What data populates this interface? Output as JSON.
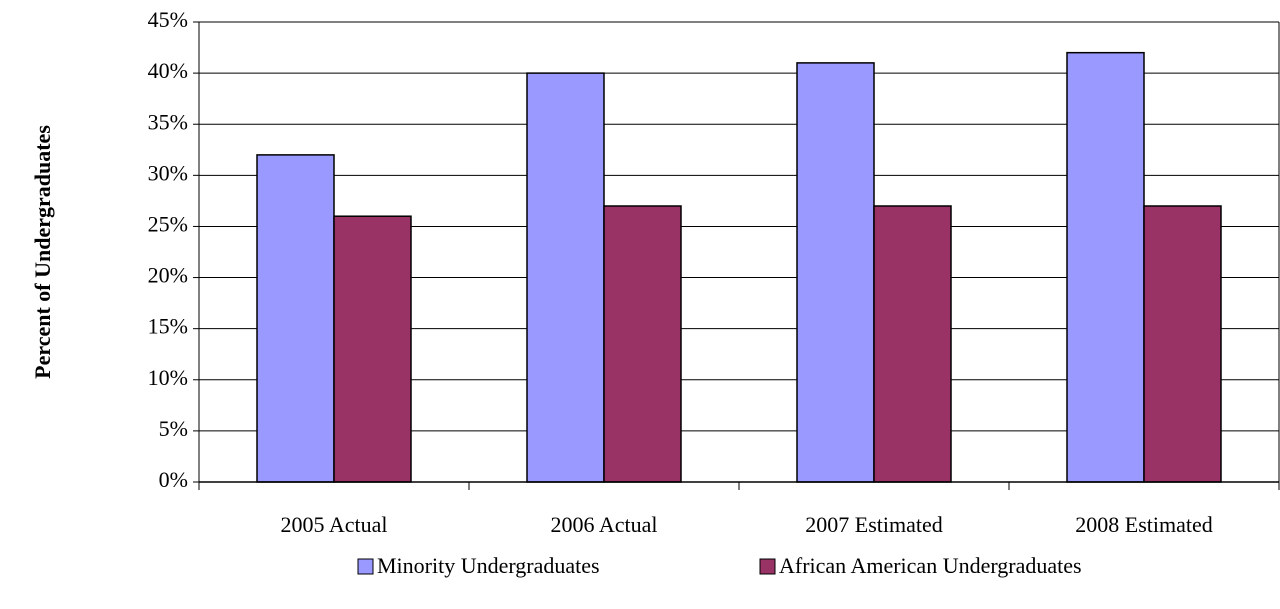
{
  "chart_data": {
    "type": "bar",
    "y_label": "Percent of Undergraduates",
    "categories": [
      "2005 Actual",
      "2006 Actual",
      "2007 Estimated",
      "2008 Estimated"
    ],
    "series": [
      {
        "name": "Minority Undergraduates",
        "color": "#9999ff",
        "values": [
          32,
          40,
          41,
          42
        ]
      },
      {
        "name": "African American Undergraduates",
        "color": "#993366",
        "values": [
          26,
          27,
          27,
          27
        ]
      }
    ],
    "ylim": [
      0,
      45
    ],
    "yticks": [
      {
        "value": 0,
        "label": "0%"
      },
      {
        "value": 5,
        "label": "5%"
      },
      {
        "value": 10,
        "label": "10%"
      },
      {
        "value": 15,
        "label": "15%"
      },
      {
        "value": 20,
        "label": "20%"
      },
      {
        "value": 25,
        "label": "25%"
      },
      {
        "value": 30,
        "label": "30%"
      },
      {
        "value": 35,
        "label": "35%"
      },
      {
        "value": 40,
        "label": "40%"
      },
      {
        "value": 45,
        "label": "45%"
      }
    ],
    "grid": true,
    "legend": "bottom"
  }
}
